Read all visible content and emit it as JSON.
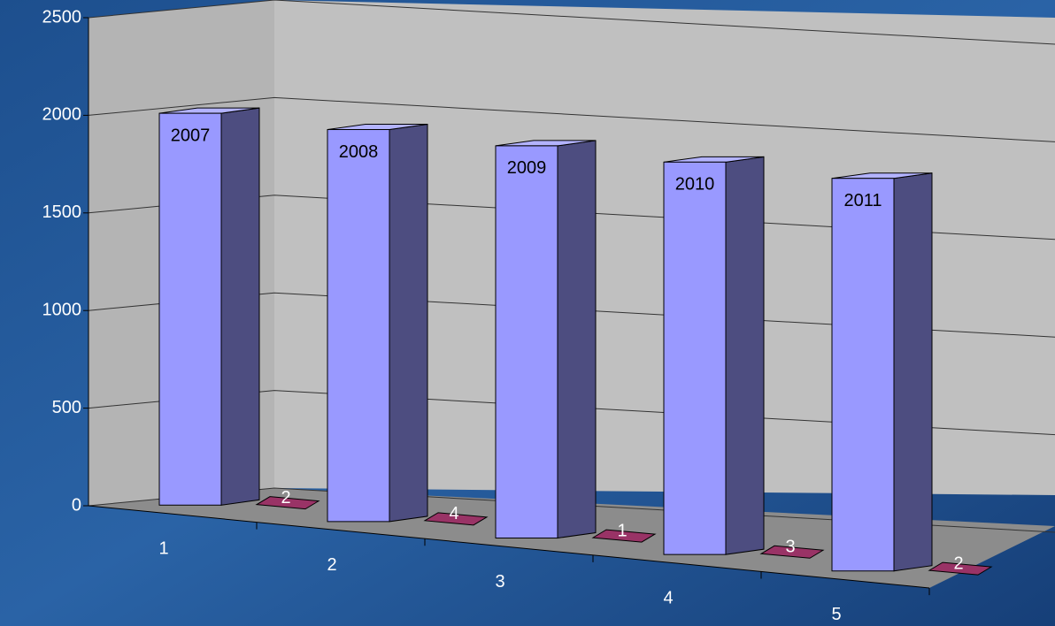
{
  "chart_data": {
    "type": "bar3d",
    "categories": [
      "1",
      "2",
      "3",
      "4",
      "5"
    ],
    "series": [
      {
        "color": "#9999ff",
        "values": [
          2007,
          2008,
          2009,
          2010,
          2011
        ]
      },
      {
        "color": "#993366",
        "values": [
          2,
          4,
          1,
          3,
          2
        ]
      }
    ],
    "ylim": [
      0,
      2500
    ],
    "yticks": [
      0,
      500,
      1000,
      1500,
      2000,
      2500
    ],
    "grid": true
  }
}
